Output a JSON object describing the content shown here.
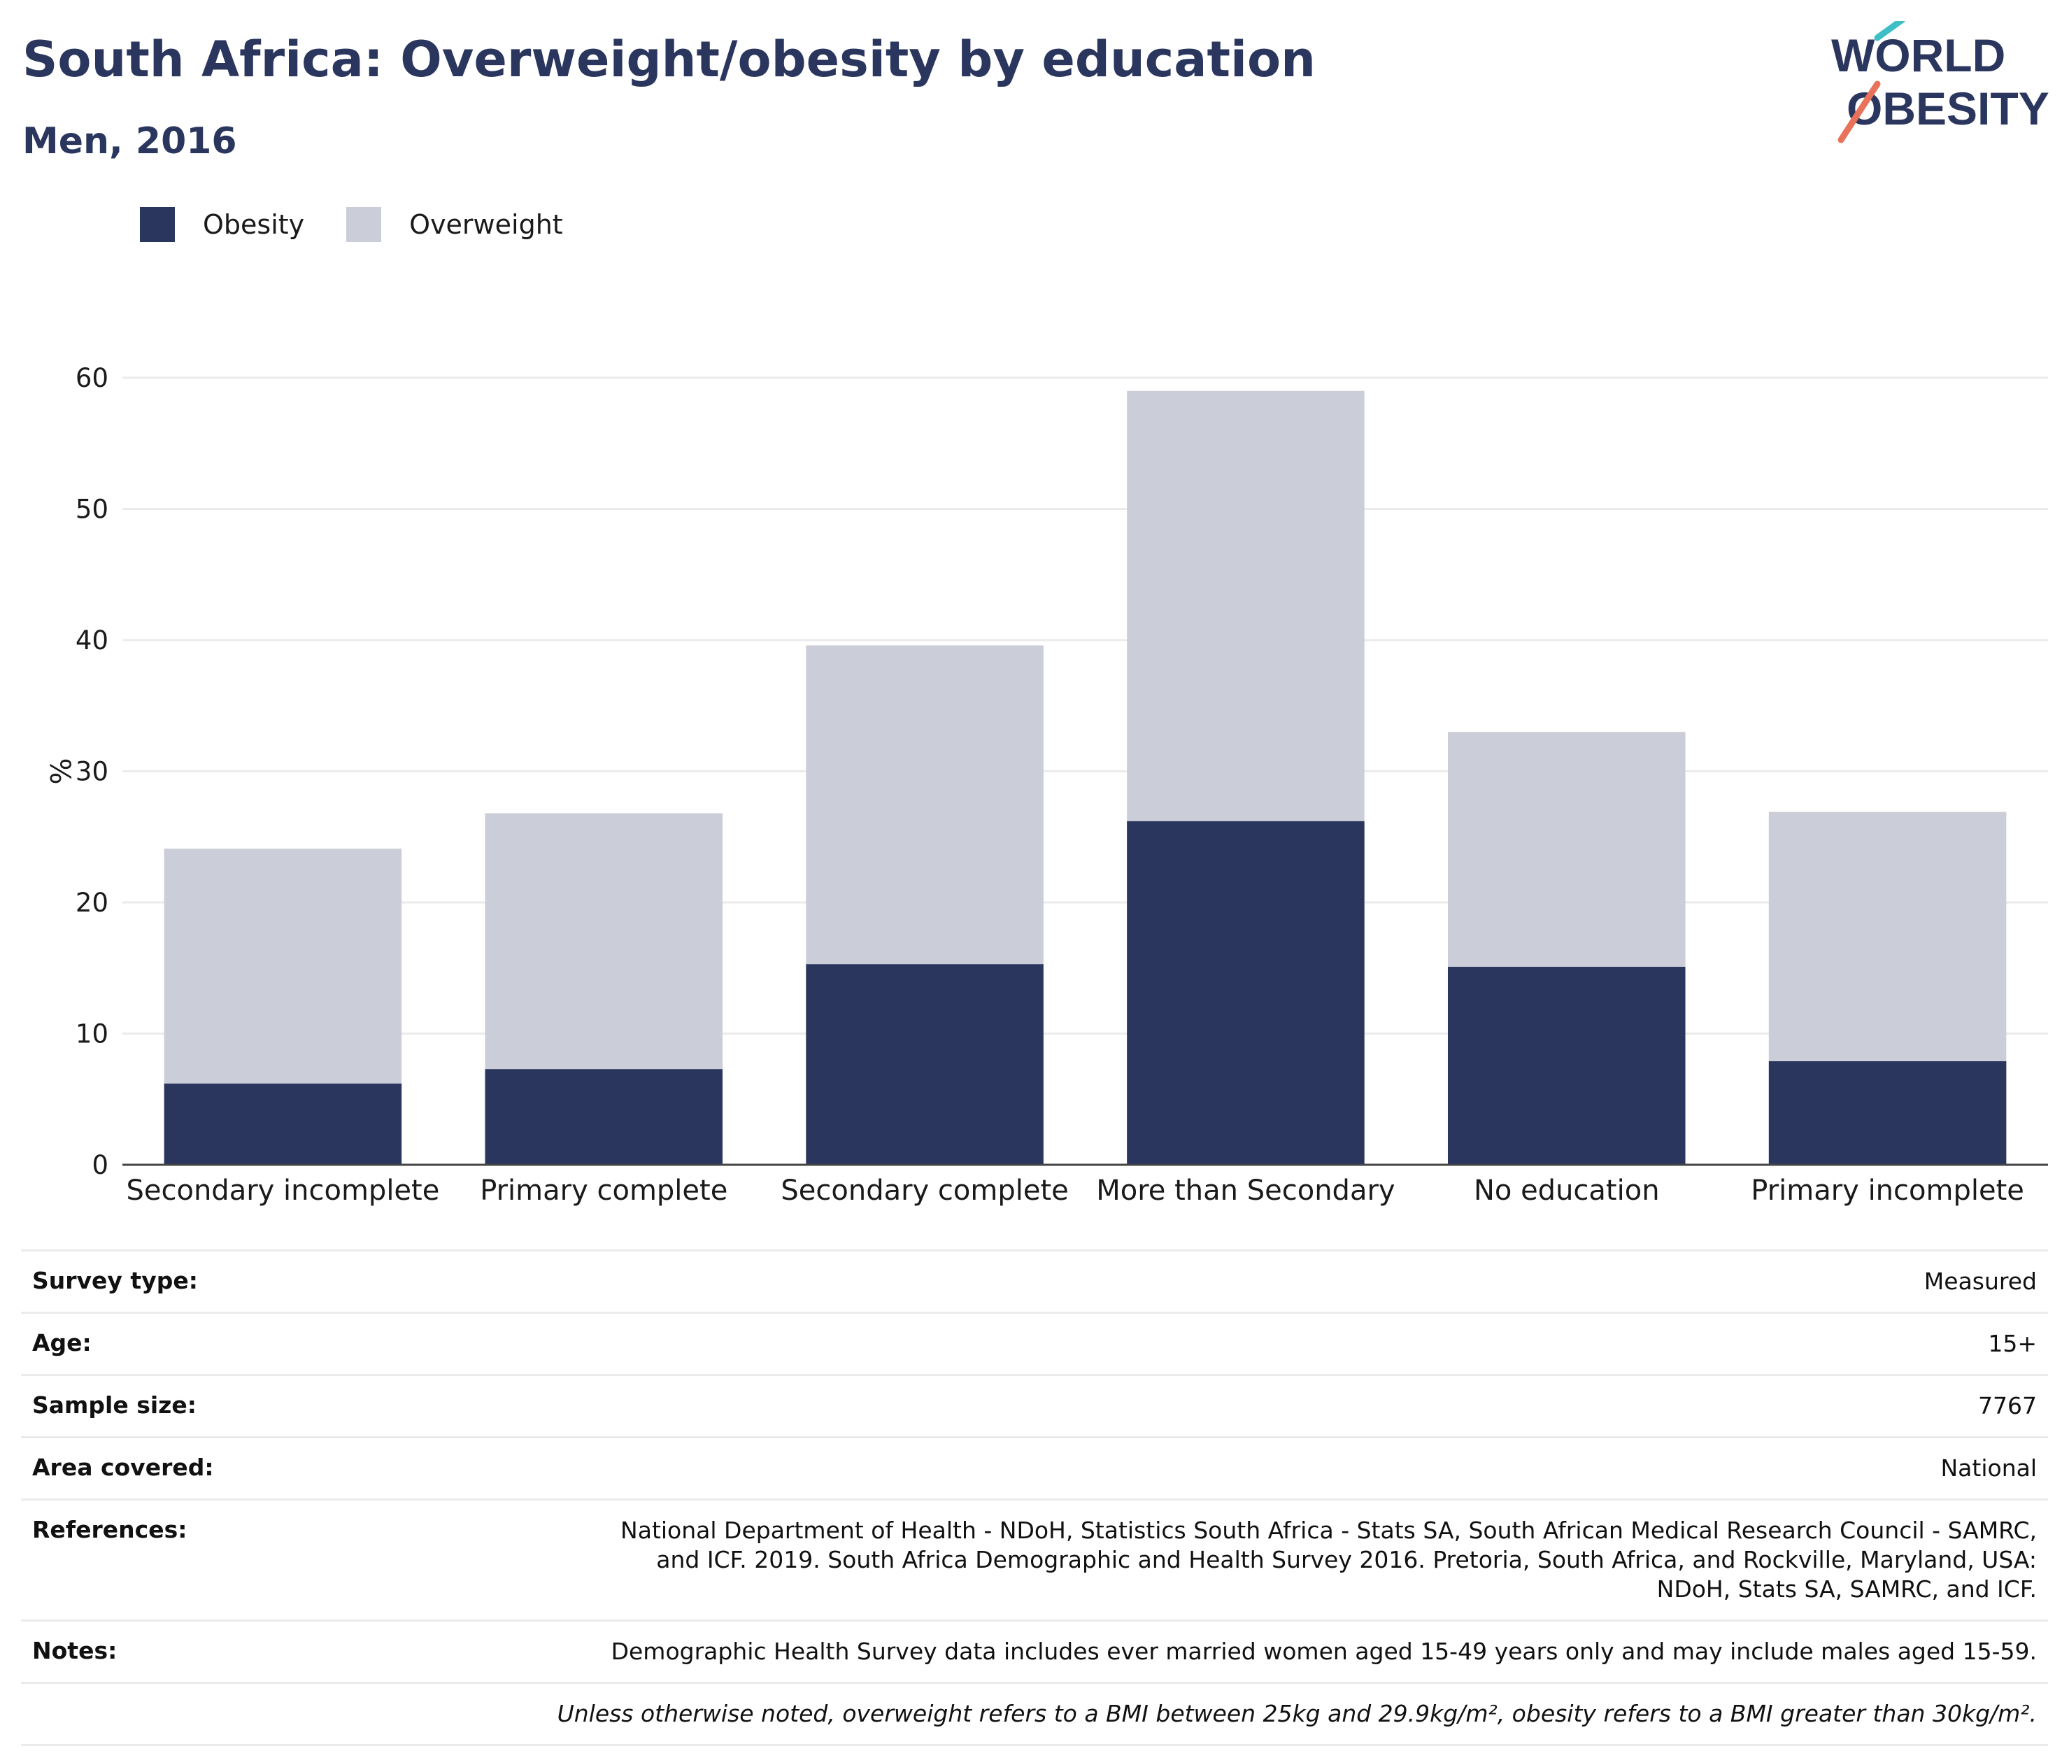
{
  "header": {
    "title": "South Africa: Overweight/obesity by education",
    "subtitle": "Men, 2016"
  },
  "logo": {
    "line1": "WORLD",
    "line2": "OBESITY",
    "accent_colors": [
      "#3ebfc6",
      "#e8735a"
    ]
  },
  "legend": [
    {
      "label": "Obesity",
      "color": "#2b365f"
    },
    {
      "label": "Overweight",
      "color": "#cbcdd8"
    }
  ],
  "chart_data": {
    "type": "bar",
    "stacked": true,
    "categories": [
      "Secondary incomplete",
      "Primary complete",
      "Secondary complete",
      "More than Secondary",
      "No education",
      "Primary incomplete"
    ],
    "series": [
      {
        "name": "Obesity",
        "color": "#2b365f",
        "values": [
          6.2,
          7.3,
          15.3,
          26.2,
          15.1,
          7.9
        ]
      },
      {
        "name": "Overweight",
        "color": "#cbcdd8",
        "values": [
          17.9,
          19.5,
          24.3,
          32.8,
          17.9,
          19.0
        ]
      }
    ],
    "ylabel": "%",
    "ylim": [
      0,
      60
    ],
    "yticks": [
      0,
      10,
      20,
      30,
      40,
      50,
      60
    ],
    "grid": true,
    "legend_position": "top-left"
  },
  "info": [
    {
      "label": "Survey type:",
      "value": "Measured"
    },
    {
      "label": "Age:",
      "value": "15+"
    },
    {
      "label": "Sample size:",
      "value": "7767"
    },
    {
      "label": "Area covered:",
      "value": "National"
    },
    {
      "label": "References:",
      "value": "National Department of Health - NDoH, Statistics South Africa - Stats SA, South African Medical Research Council - SAMRC, and ICF. 2019. South Africa Demographic and Health Survey 2016. Pretoria, South Africa, and Rockville, Maryland, USA: NDoH, Stats SA, SAMRC, and ICF."
    },
    {
      "label": "Notes:",
      "value": "Demographic Health Survey data includes ever married women aged 15-49 years only and may include males aged 15-59."
    }
  ],
  "footnote": "Unless otherwise noted, overweight refers to a BMI between 25kg and 29.9kg/m², obesity refers to a BMI greater than 30kg/m²."
}
